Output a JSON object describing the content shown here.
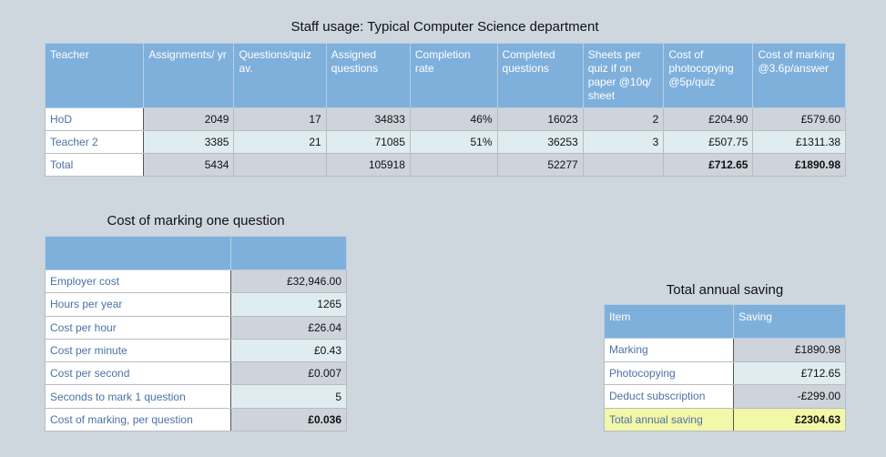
{
  "staff": {
    "title": "Staff usage: Typical Computer Science department",
    "headers": [
      "Teacher",
      "Assignments/ yr",
      "Questions/quiz av.",
      "Assigned questions",
      "Completion rate",
      "Completed questions",
      "Sheets per quiz if on paper @10q/ sheet",
      "Cost of photocopying @5p/quiz",
      "Cost of marking @3.6p/answer"
    ],
    "rows": [
      [
        "HoD",
        "2049",
        "17",
        "34833",
        "46%",
        "16023",
        "2",
        "£204.90",
        "£579.60"
      ],
      [
        "Teacher 2",
        "3385",
        "21",
        "71085",
        "51%",
        "36253",
        "3",
        "£507.75",
        "£1311.38"
      ],
      [
        "Total",
        "5434",
        "",
        "105918",
        "",
        "52277",
        "",
        "£712.65",
        "£1890.98"
      ]
    ]
  },
  "marking": {
    "title": "Cost of marking one question",
    "rows": [
      [
        "Employer cost",
        "£32,946.00"
      ],
      [
        "Hours per year",
        "1265"
      ],
      [
        "Cost per hour",
        "£26.04"
      ],
      [
        "Cost per minute",
        "£0.43"
      ],
      [
        "Cost per second",
        "£0.007"
      ],
      [
        "Seconds to mark 1 question",
        "5"
      ],
      [
        "Cost of marking, per question",
        "£0.036"
      ]
    ]
  },
  "saving": {
    "title": "Total annual saving",
    "headers": [
      "Item",
      "Saving"
    ],
    "rows": [
      [
        "Marking",
        "£1890.98"
      ],
      [
        "Photocopying",
        "£712.65"
      ],
      [
        "Deduct subscription",
        "-£299.00"
      ],
      [
        "Total annual saving",
        "£2304.63"
      ]
    ]
  }
}
